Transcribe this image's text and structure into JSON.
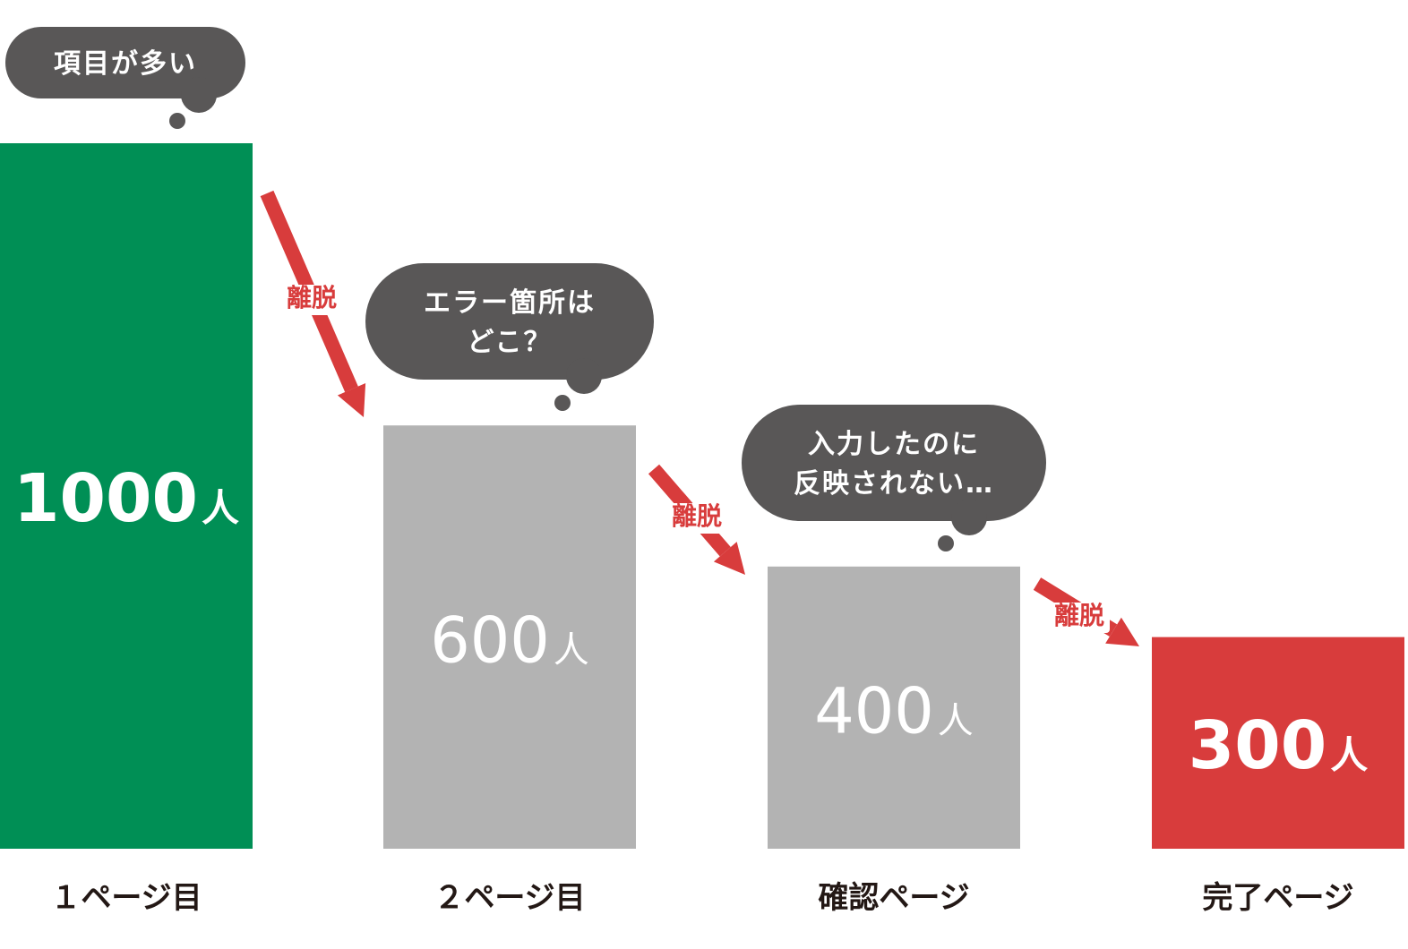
{
  "colors": {
    "first": "#008f55",
    "middle": "#b3b3b3",
    "last": "#d83c3c",
    "arrow": "#d83c3c",
    "bubble": "#595757",
    "label_text": "#231815",
    "value_text": "#ffffff"
  },
  "chart_data": {
    "type": "bar",
    "title": "",
    "xlabel": "",
    "ylabel": "",
    "categories": [
      "１ページ目",
      "２ページ目",
      "確認ページ",
      "完了ページ"
    ],
    "series": [
      {
        "values": [
          1000,
          600,
          400,
          300
        ]
      }
    ],
    "value_labels": [
      "1000人",
      "600人",
      "400人",
      "300人"
    ],
    "value_numbers": [
      "1000",
      "600",
      "400",
      "300"
    ],
    "value_unit": "人",
    "ylim": [
      0,
      1000
    ],
    "grid": false,
    "legend": "none",
    "annotations": {
      "bubbles": [
        {
          "category": "１ページ目",
          "lines": [
            "項目が多い"
          ]
        },
        {
          "category": "２ページ目",
          "lines": [
            "エラー箇所は",
            "どこ？"
          ]
        },
        {
          "category": "確認ページ",
          "lines": [
            "入力したのに",
            "反映されない…"
          ]
        }
      ],
      "dropoff_label": "離脱"
    }
  }
}
